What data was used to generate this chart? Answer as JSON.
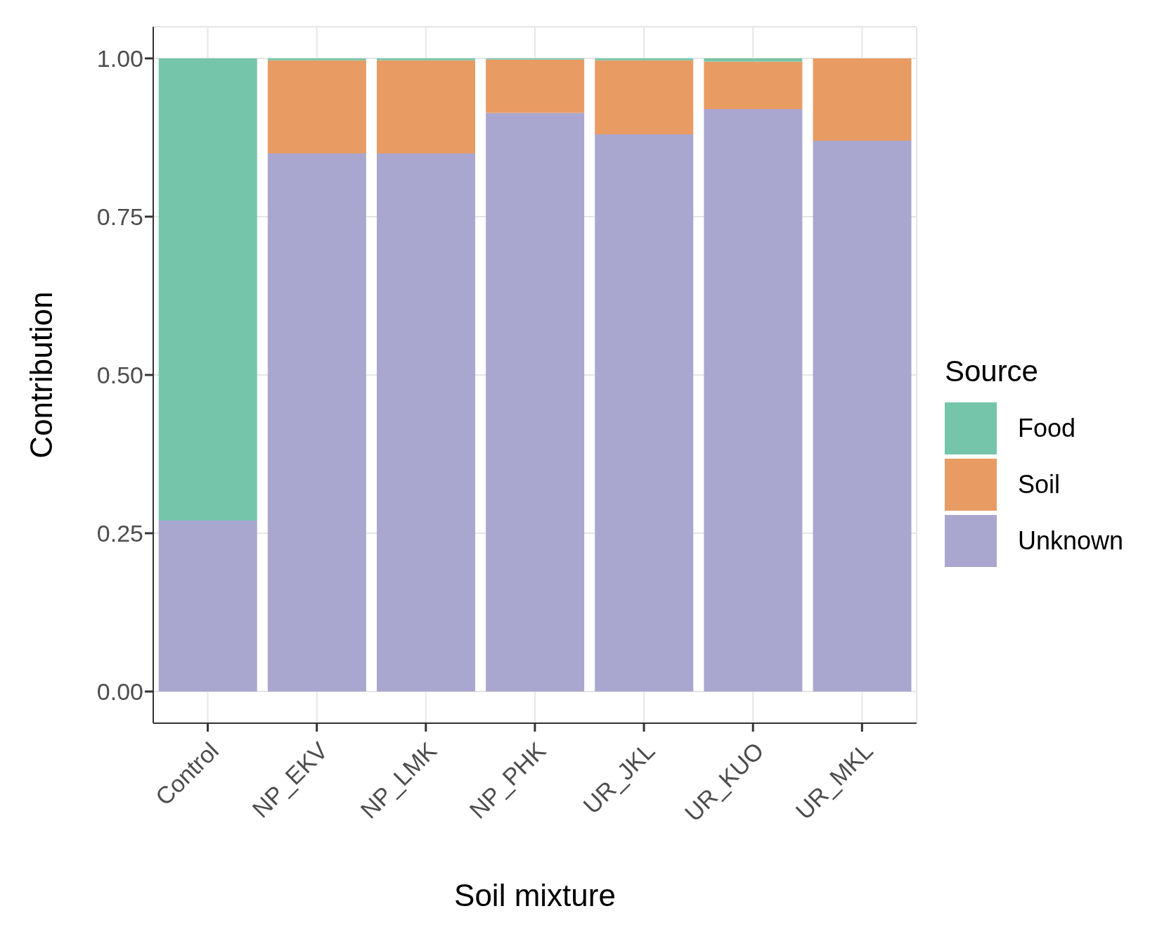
{
  "chart_data": {
    "type": "bar",
    "stacked": true,
    "xlabel": "Soil mixture",
    "ylabel": "Contribution",
    "legend_title": "Source",
    "legend": "right",
    "grid": true,
    "categories": [
      "Control",
      "NP_EKV",
      "NP_LMK",
      "NP_PHK",
      "UR_JKL",
      "UR_KUO",
      "UR_MKL"
    ],
    "ylim": [
      -0.05,
      1.05
    ],
    "yticks": [
      {
        "value": 0,
        "label": "0.00"
      },
      {
        "value": 0.25,
        "label": "0.25"
      },
      {
        "value": 0.5,
        "label": "0.50"
      },
      {
        "value": 0.75,
        "label": "0.75"
      },
      {
        "value": 1,
        "label": "1.00"
      }
    ],
    "series": [
      {
        "name": "Unknown",
        "color": "#a9a7cf",
        "values": [
          0.27,
          0.85,
          0.85,
          0.914,
          0.88,
          0.92,
          0.87
        ]
      },
      {
        "name": "Soil",
        "color": "#e89c63",
        "values": [
          0,
          0.147,
          0.147,
          0.084,
          0.117,
          0.075,
          0.13
        ]
      },
      {
        "name": "Food",
        "color": "#75c5aa",
        "values": [
          0.73,
          0.003,
          0.003,
          0.002,
          0.003,
          0.005,
          0
        ]
      }
    ]
  }
}
